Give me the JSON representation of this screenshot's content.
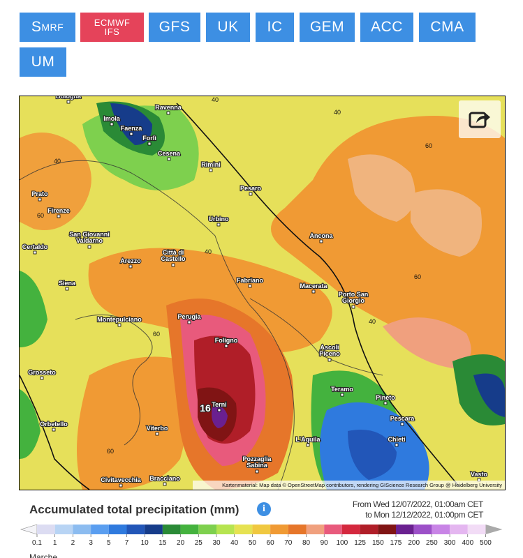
{
  "tabs": [
    {
      "main": "S",
      "sub": "MRF"
    },
    {
      "lines": [
        "ECMWF",
        "IFS"
      ]
    },
    "GFS",
    "UK",
    "IC",
    "GEM",
    "ACC",
    "CMA",
    "UM"
  ],
  "map": {
    "cities": [
      "Bologna",
      "Ravenna",
      "Imola",
      "Faenza",
      "Forlì",
      "Cesena",
      "Rimini",
      "Pesaro",
      "Prato",
      "Firenze",
      "Urbino",
      [
        "San Giovanni",
        "Valdarno"
      ],
      "Certaldo",
      "Ancona",
      "Arezzo",
      [
        "Città di",
        "Castello"
      ],
      "Siena",
      "Fabriano",
      "Macerata",
      [
        "Porto San",
        "Giorgio"
      ],
      "Montepulciano",
      "Perugia",
      "Foligno",
      [
        "Ascoli",
        "Piceno"
      ],
      "Grosseto",
      "Teramo",
      "Pineto",
      "Terni",
      "Pescara",
      "Orbetello",
      "Viterbo",
      "L'Aquila",
      "Chieti",
      [
        "Pozzaglia",
        "Sabina"
      ],
      "Civitavecchia",
      "Bracciano",
      "Vasto"
    ],
    "contours": [
      40,
      40,
      60,
      40,
      60,
      40,
      60,
      40,
      60,
      60
    ],
    "max_value": 16,
    "attribution": "Kartenmaterial: Map data © OpenStreetMap contributors, rendering GIScience Research Group @ Heidelberg University"
  },
  "legend": {
    "title": "Accumulated total precipitation (mm)",
    "from": "From Wed 12/07/2022, 01:00am CET",
    "to": "to Mon 12/12/2022, 01:00pm CET",
    "levels": [
      0.1,
      1,
      2,
      3,
      5,
      7,
      10,
      15,
      20,
      25,
      30,
      40,
      50,
      60,
      70,
      80,
      90,
      100,
      125,
      150,
      175,
      200,
      250,
      300,
      400,
      500
    ],
    "colors": [
      "#dcdcf2",
      "#b8d4f4",
      "#8cbcf0",
      "#5a9ef0",
      "#2f7ade",
      "#2256b8",
      "#163c8a",
      "#2a8a36",
      "#44b23e",
      "#7ed04e",
      "#b6e450",
      "#e6e252",
      "#f0c840",
      "#f09a34",
      "#e6762a",
      "#f0a07e",
      "#e85a7c",
      "#d4283e",
      "#b01e28",
      "#801414",
      "#6a2090",
      "#9c50c8",
      "#c884e6",
      "#e4b6f0",
      "#f2dcf6",
      "#aaaaaa"
    ]
  },
  "footer": "Marche"
}
